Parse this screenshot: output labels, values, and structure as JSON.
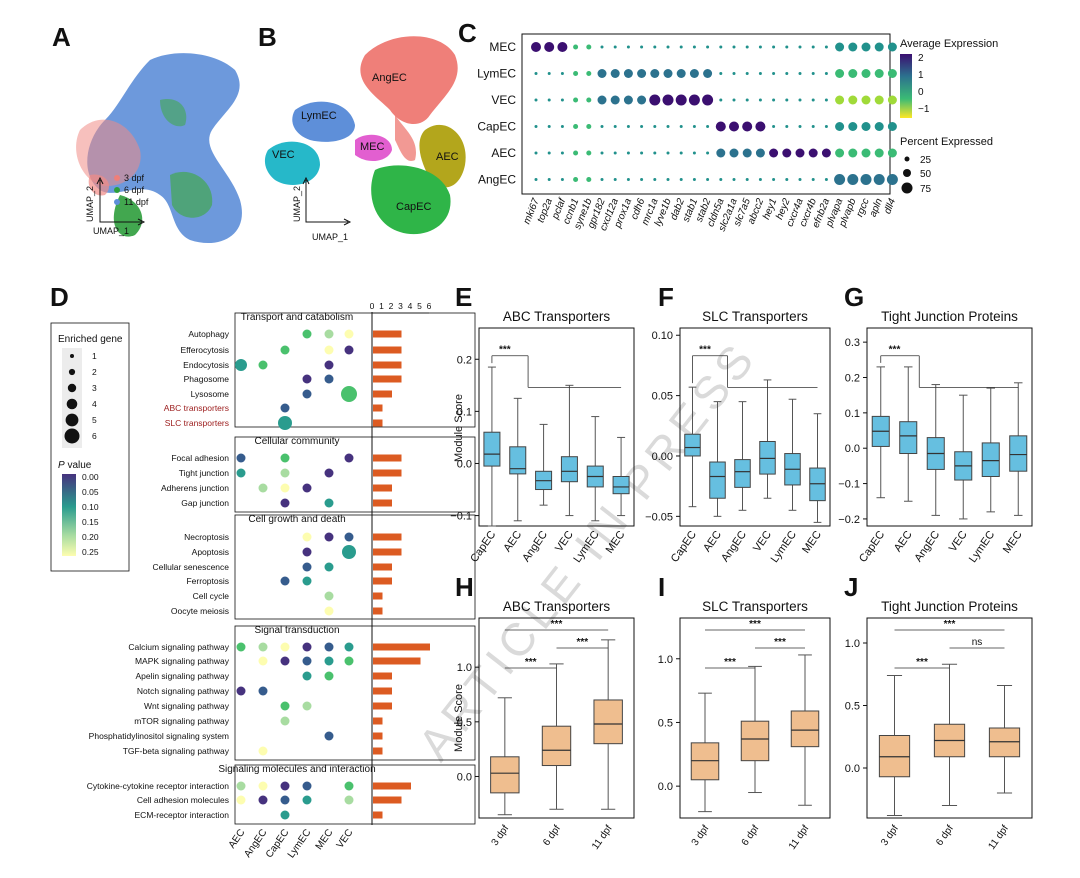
{
  "panels": {
    "A": "A",
    "B": "B",
    "C": "C",
    "D": "D",
    "E": "E",
    "F": "F",
    "G": "G",
    "H": "H",
    "I": "I",
    "J": "J"
  },
  "colors": {
    "box_blue": "#66bfe0",
    "box_orange": "#efbe8f",
    "bar": "#dc5b22",
    "pink": "#ef7f79",
    "green": "#2e9e3d",
    "blue": "#5e8fd9",
    "watermark": "#d7d7d7"
  },
  "watermark": "ARTICLE IN PRESS",
  "umapA": {
    "legend": [
      "3 dpf",
      "6 dpf",
      "11 dpf"
    ],
    "xlabel": "UMAP_1",
    "ylabel": "UMAP_2"
  },
  "umapB": {
    "clusters": [
      "AngEC",
      "LymEC",
      "VEC",
      "MEC",
      "AEC",
      "CapEC"
    ],
    "xlabel": "UMAP_1",
    "ylabel": "UMAP_2"
  },
  "dotplotC": {
    "rows": [
      "MEC",
      "LymEC",
      "VEC",
      "CapEC",
      "AEC",
      "AngEC"
    ],
    "genes": [
      "mki67",
      "top2a",
      "pclaf",
      "ccnb1",
      "syne1b",
      "gpr182",
      "cxcl12a",
      "prox1a",
      "cdh6",
      "mrc1a",
      "lyve1b",
      "dab2",
      "stab1",
      "stab2",
      "cldn5a",
      "slc2a1a",
      "slc7a5",
      "abcc2",
      "hey1",
      "hey2",
      "cxcr4a",
      "cxcr4b",
      "efnb2a",
      "plvapa",
      "plvapb",
      "rgcc",
      "apln",
      "dll4"
    ],
    "colorbar_title": "Average Expression",
    "colorbar_ticks": [
      "2",
      "1",
      "0",
      "−1"
    ],
    "size_title": "Percent Expressed",
    "size_ticks": [
      "25",
      "50",
      "75"
    ]
  },
  "enrichmentD": {
    "legend_size_title": "Enriched gene",
    "legend_sizes": [
      "1",
      "2",
      "3",
      "4",
      "5",
      "6"
    ],
    "legend_color_title": "P value",
    "legend_color_title_p": "P",
    "legend_color_title_rest": " value",
    "legend_color_ticks": [
      "0.00",
      "0.05",
      "0.10",
      "0.15",
      "0.20",
      "0.25"
    ],
    "columns": [
      "AEC",
      "AngEC",
      "CapEC",
      "LymEC",
      "MEC",
      "VEC"
    ],
    "bar_axis_ticks": [
      "0",
      "1",
      "2",
      "3",
      "4",
      "5",
      "6"
    ],
    "groups": [
      {
        "title": "Transport and catabolism",
        "terms": [
          "Autophagy",
          "Efferocytosis",
          "Endocytosis",
          "Phagosome",
          "Lysosome",
          "ABC transporters",
          "SLC transporters"
        ]
      },
      {
        "title": "Cellular community",
        "terms": [
          "Focal adhesion",
          "Tight junction",
          "Adherens junction",
          "Gap junction"
        ]
      },
      {
        "title": "Cell growth and death",
        "terms": [
          "Necroptosis",
          "Apoptosis",
          "Cellular senescence",
          "Ferroptosis",
          "Cell cycle",
          "Oocyte meiosis"
        ]
      },
      {
        "title": "Signal transduction",
        "terms": [
          "Calcium signaling pathway",
          "MAPK signaling pathway",
          "Apelin signaling pathway",
          "Notch signaling pathway",
          "Wnt signaling pathway",
          "mTOR signaling pathway",
          "Phosphatidylinositol signaling system",
          "TGF-beta signaling pathway"
        ]
      },
      {
        "title": "Signaling molecules and interaction",
        "terms": [
          "Cytokine-cytokine receptor interaction",
          "Cell adhesion molecules",
          "ECM-receptor interaction"
        ]
      }
    ],
    "bars": [
      3,
      3,
      3,
      3,
      2,
      1,
      1,
      3,
      3,
      2,
      2,
      3,
      3,
      2,
      2,
      1,
      1,
      6,
      5,
      2,
      2,
      2,
      1,
      1,
      1,
      4,
      3,
      1
    ]
  },
  "boxplots_top": {
    "ylabel": "Module Score",
    "categories": [
      "CapEC",
      "AEC",
      "AngEC",
      "VEC",
      "LymEC",
      "MEC"
    ],
    "E": {
      "title": "ABC Transporters",
      "ylim": [
        -0.12,
        0.26
      ],
      "yticks": [
        "0.2",
        "0.1",
        "0.0",
        "−0.1"
      ],
      "ytickvals": [
        0.2,
        0.1,
        0.0,
        -0.1
      ],
      "boxes": [
        [
          -0.12,
          -0.005,
          0.018,
          0.06,
          0.185
        ],
        [
          -0.11,
          -0.02,
          -0.01,
          0.032,
          0.125
        ],
        [
          -0.08,
          -0.05,
          -0.033,
          -0.015,
          0.075
        ],
        [
          -0.1,
          -0.035,
          -0.015,
          0.013,
          0.15
        ],
        [
          -0.11,
          -0.045,
          -0.025,
          -0.005,
          0.09
        ],
        [
          -0.1,
          -0.058,
          -0.045,
          -0.025,
          0.05
        ]
      ],
      "sig": "***"
    },
    "F": {
      "title": "SLC Transporters",
      "ylim": [
        -0.058,
        0.106
      ],
      "yticks": [
        "0.10",
        "0.05",
        "0.00",
        "−0.05"
      ],
      "ytickvals": [
        0.1,
        0.05,
        0.0,
        -0.05
      ],
      "boxes": [
        [
          -0.042,
          0.0,
          0.007,
          0.018,
          0.057
        ],
        [
          -0.05,
          -0.035,
          -0.017,
          -0.005,
          0.045
        ],
        [
          -0.045,
          -0.026,
          -0.013,
          -0.003,
          0.045
        ],
        [
          -0.035,
          -0.015,
          -0.002,
          0.012,
          0.063
        ],
        [
          -0.045,
          -0.024,
          -0.011,
          0.002,
          0.047
        ],
        [
          -0.055,
          -0.037,
          -0.023,
          -0.01,
          0.035
        ]
      ],
      "sig": "***"
    },
    "G": {
      "title": "Tight Junction Proteins",
      "ylim": [
        -0.22,
        0.34
      ],
      "yticks": [
        "0.3",
        "0.2",
        "0.1",
        "0.0",
        "−0.1",
        "−0.2"
      ],
      "ytickvals": [
        0.3,
        0.2,
        0.1,
        0.0,
        -0.1,
        -0.2
      ],
      "boxes": [
        [
          -0.14,
          0.005,
          0.048,
          0.09,
          0.23
        ],
        [
          -0.15,
          -0.015,
          0.035,
          0.075,
          0.23
        ],
        [
          -0.19,
          -0.06,
          -0.015,
          0.03,
          0.18
        ],
        [
          -0.2,
          -0.09,
          -0.05,
          -0.01,
          0.15
        ],
        [
          -0.18,
          -0.08,
          -0.035,
          0.015,
          0.17
        ],
        [
          -0.19,
          -0.065,
          -0.018,
          0.035,
          0.185
        ]
      ],
      "sig": "***"
    }
  },
  "boxplots_bottom": {
    "ylabel": "Module Score",
    "categories": [
      "3 dpf",
      "6 dpf",
      "11 dpf"
    ],
    "H": {
      "title": "ABC Transporters",
      "ylim": [
        -0.38,
        1.45
      ],
      "yticks": [
        "1.0",
        "0.5",
        "0.0"
      ],
      "ytickvals": [
        1.0,
        0.5,
        0.0
      ],
      "boxes": [
        [
          -0.35,
          -0.15,
          0.03,
          0.18,
          0.72
        ],
        [
          -0.3,
          0.1,
          0.24,
          0.46,
          1.03
        ],
        [
          -0.3,
          0.3,
          0.48,
          0.7,
          1.25
        ]
      ],
      "sig": [
        [
          "1",
          "2",
          "***"
        ],
        [
          "2",
          "3",
          "***"
        ],
        [
          "1",
          "3",
          "***"
        ]
      ]
    },
    "I": {
      "title": "SLC Transporters",
      "ylim": [
        -0.25,
        1.32
      ],
      "yticks": [
        "1.0",
        "0.5",
        "0.0"
      ],
      "ytickvals": [
        1.0,
        0.5,
        0.0
      ],
      "boxes": [
        [
          -0.2,
          0.05,
          0.2,
          0.34,
          0.73
        ],
        [
          -0.05,
          0.2,
          0.37,
          0.51,
          0.94
        ],
        [
          -0.15,
          0.31,
          0.44,
          0.59,
          1.03
        ]
      ],
      "sig": [
        [
          "1",
          "2",
          "***"
        ],
        [
          "2",
          "3",
          "***"
        ],
        [
          "1",
          "3",
          "***"
        ]
      ]
    },
    "J": {
      "title": "Tight Junction Proteins",
      "ylim": [
        -0.4,
        1.2
      ],
      "yticks": [
        "1.0",
        "0.5",
        "0.0"
      ],
      "ytickvals": [
        1.0,
        0.5,
        0.0
      ],
      "boxes": [
        [
          -0.38,
          -0.07,
          0.09,
          0.26,
          0.74
        ],
        [
          -0.3,
          0.09,
          0.22,
          0.35,
          0.83
        ],
        [
          -0.2,
          0.09,
          0.21,
          0.32,
          0.66
        ]
      ],
      "sig": [
        [
          "1",
          "2",
          "***"
        ],
        [
          "2",
          "3",
          "ns"
        ],
        [
          "1",
          "3",
          "***"
        ]
      ]
    }
  }
}
